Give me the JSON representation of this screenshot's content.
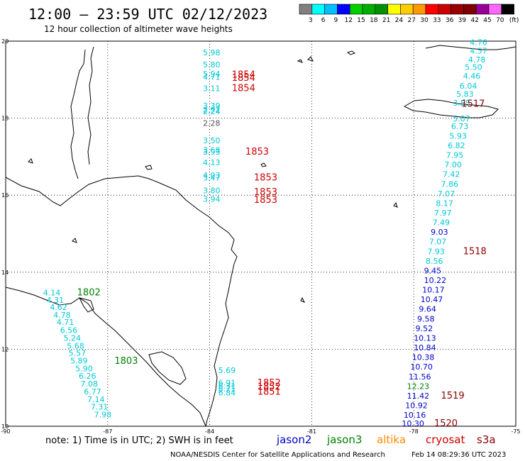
{
  "header": {
    "title": "12:00 – 23:59 UTC 02/12/2023",
    "subtitle": "12 hour collection of altimeter wave heights"
  },
  "colorbar": {
    "labels": [
      "3",
      "6",
      "9",
      "12",
      "15",
      "18",
      "21",
      "24",
      "27",
      "30",
      "33",
      "36",
      "39",
      "42",
      "45",
      "70",
      "(ft)"
    ],
    "colors": [
      "#808080",
      "#00ffff",
      "#00c0ff",
      "#0000ff",
      "#00d000",
      "#00b000",
      "#009000",
      "#ffff00",
      "#ffcc00",
      "#ff9900",
      "#ff0000",
      "#cc0000",
      "#990000",
      "#800000",
      "#990099",
      "#ff66ff",
      "#000000"
    ]
  },
  "map": {
    "lon_range": [
      -90,
      -75
    ],
    "lat_range": [
      10,
      20
    ],
    "lon_ticks": [
      "-90",
      "-87",
      "-84",
      "-81",
      "-78",
      "-75"
    ],
    "lat_ticks": [
      "20",
      "18",
      "16",
      "14",
      "12",
      "10"
    ],
    "grid": "dotted"
  },
  "satellite_colors": {
    "jason2": "#0000cc",
    "jason3": "#008000",
    "altika": "#ff8c00",
    "cryosat": "#cc0000",
    "s3a": "#8b0000",
    "cyan": "#00c8d8"
  },
  "wave_labels": [
    {
      "text": "5.98",
      "lon": -84.2,
      "lat": 19.63,
      "color": "cyan"
    },
    {
      "text": "5.80",
      "lon": -84.2,
      "lat": 19.32,
      "color": "cyan"
    },
    {
      "text": "5.94",
      "lon": -84.2,
      "lat": 19.08,
      "color": "cyan"
    },
    {
      "text": "4.71",
      "lon": -84.2,
      "lat": 19.0,
      "color": "cyan"
    },
    {
      "text": "3.11",
      "lon": -84.2,
      "lat": 18.7,
      "color": "cyan"
    },
    {
      "text": "3.39",
      "lon": -84.2,
      "lat": 18.25,
      "color": "cyan"
    },
    {
      "text": "2.92",
      "lon": -84.2,
      "lat": 18.15,
      "color": "cyan"
    },
    {
      "text": "2.24",
      "lon": -84.2,
      "lat": 18.1,
      "color": "cyan"
    },
    {
      "text": "2.28",
      "lon": -84.2,
      "lat": 17.8,
      "color": "gray"
    },
    {
      "text": "3.50",
      "lon": -84.2,
      "lat": 17.35,
      "color": "cyan"
    },
    {
      "text": "3.68",
      "lon": -84.2,
      "lat": 17.1,
      "color": "cyan"
    },
    {
      "text": "3.93",
      "lon": -84.2,
      "lat": 17.05,
      "color": "cyan"
    },
    {
      "text": "4.13",
      "lon": -84.2,
      "lat": 16.78,
      "color": "cyan"
    },
    {
      "text": "4.03",
      "lon": -84.2,
      "lat": 16.45,
      "color": "cyan"
    },
    {
      "text": "3.47",
      "lon": -84.2,
      "lat": 16.38,
      "color": "cyan"
    },
    {
      "text": "3.80",
      "lon": -84.2,
      "lat": 16.05,
      "color": "cyan"
    },
    {
      "text": "3.94",
      "lon": -84.2,
      "lat": 15.83,
      "color": "cyan"
    },
    {
      "text": "5.69",
      "lon": -83.75,
      "lat": 11.38,
      "color": "cyan"
    },
    {
      "text": "6.91",
      "lon": -83.75,
      "lat": 11.06,
      "color": "cyan"
    },
    {
      "text": "6.31",
      "lon": -83.75,
      "lat": 10.98,
      "color": "cyan"
    },
    {
      "text": "6.71",
      "lon": -83.75,
      "lat": 10.9,
      "color": "cyan"
    },
    {
      "text": "6.84",
      "lon": -83.75,
      "lat": 10.8,
      "color": "cyan"
    },
    {
      "text": "4.14",
      "lon": -88.9,
      "lat": 13.4,
      "color": "cyan"
    },
    {
      "text": "4.31",
      "lon": -88.8,
      "lat": 13.2,
      "color": "cyan"
    },
    {
      "text": "4.62",
      "lon": -88.7,
      "lat": 13.02,
      "color": "cyan"
    },
    {
      "text": "4.78",
      "lon": -88.6,
      "lat": 12.82,
      "color": "cyan"
    },
    {
      "text": "4.71",
      "lon": -88.5,
      "lat": 12.63,
      "color": "cyan"
    },
    {
      "text": "6.56",
      "lon": -88.4,
      "lat": 12.42,
      "color": "cyan"
    },
    {
      "text": "5.24",
      "lon": -88.3,
      "lat": 12.22,
      "color": "cyan"
    },
    {
      "text": "5.68",
      "lon": -88.2,
      "lat": 12.02,
      "color": "cyan"
    },
    {
      "text": "5.57",
      "lon": -88.15,
      "lat": 11.83,
      "color": "cyan"
    },
    {
      "text": "5.89",
      "lon": -88.1,
      "lat": 11.63,
      "color": "cyan"
    },
    {
      "text": "5.90",
      "lon": -87.95,
      "lat": 11.43,
      "color": "cyan"
    },
    {
      "text": "6.26",
      "lon": -87.85,
      "lat": 11.23,
      "color": "cyan"
    },
    {
      "text": "7.08",
      "lon": -87.8,
      "lat": 11.03,
      "color": "cyan"
    },
    {
      "text": "6.77",
      "lon": -87.7,
      "lat": 10.83,
      "color": "cyan"
    },
    {
      "text": "7.14",
      "lon": -87.6,
      "lat": 10.63,
      "color": "cyan"
    },
    {
      "text": "7.31",
      "lon": -87.5,
      "lat": 10.43,
      "color": "cyan"
    },
    {
      "text": "7.98",
      "lon": -87.4,
      "lat": 10.23,
      "color": "cyan"
    },
    {
      "text": "4.76",
      "lon": -76.35,
      "lat": 19.9,
      "color": "cyan"
    },
    {
      "text": "4.57",
      "lon": -76.35,
      "lat": 19.68,
      "color": "cyan"
    },
    {
      "text": "4.78",
      "lon": -76.4,
      "lat": 19.45,
      "color": "cyan"
    },
    {
      "text": "5.50",
      "lon": -76.5,
      "lat": 19.25,
      "color": "cyan"
    },
    {
      "text": "4.46",
      "lon": -76.55,
      "lat": 19.02,
      "color": "cyan"
    },
    {
      "text": "6.04",
      "lon": -76.65,
      "lat": 18.77,
      "color": "cyan"
    },
    {
      "text": "5.83",
      "lon": -76.75,
      "lat": 18.55,
      "color": "cyan"
    },
    {
      "text": "3.55",
      "lon": -76.85,
      "lat": 18.32,
      "color": "cyan"
    },
    {
      "text": "5.07",
      "lon": -76.85,
      "lat": 17.92,
      "color": "cyan"
    },
    {
      "text": "6.73",
      "lon": -76.9,
      "lat": 17.72,
      "color": "cyan"
    },
    {
      "text": "5.93",
      "lon": -76.95,
      "lat": 17.47,
      "color": "cyan"
    },
    {
      "text": "6.82",
      "lon": -77.0,
      "lat": 17.22,
      "color": "cyan"
    },
    {
      "text": "7.95",
      "lon": -77.05,
      "lat": 16.97,
      "color": "cyan"
    },
    {
      "text": "7.00",
      "lon": -77.1,
      "lat": 16.72,
      "color": "cyan"
    },
    {
      "text": "7.42",
      "lon": -77.15,
      "lat": 16.47,
      "color": "cyan"
    },
    {
      "text": "7.86",
      "lon": -77.2,
      "lat": 16.22,
      "color": "cyan"
    },
    {
      "text": "7.07",
      "lon": -77.3,
      "lat": 15.97,
      "color": "cyan"
    },
    {
      "text": "8.17",
      "lon": -77.35,
      "lat": 15.72,
      "color": "cyan"
    },
    {
      "text": "7.97",
      "lon": -77.4,
      "lat": 15.47,
      "color": "cyan"
    },
    {
      "text": "7.49",
      "lon": -77.45,
      "lat": 15.22,
      "color": "cyan"
    },
    {
      "text": "9.03",
      "lon": -77.5,
      "lat": 14.97,
      "color": "jason2"
    },
    {
      "text": "7.07",
      "lon": -77.55,
      "lat": 14.72,
      "color": "cyan"
    },
    {
      "text": "7.93",
      "lon": -77.6,
      "lat": 14.47,
      "color": "cyan"
    },
    {
      "text": "8.56",
      "lon": -77.65,
      "lat": 14.22,
      "color": "cyan"
    },
    {
      "text": "9.45",
      "lon": -77.7,
      "lat": 13.97,
      "color": "jason2"
    },
    {
      "text": "10.22",
      "lon": -77.7,
      "lat": 13.72,
      "color": "jason2"
    },
    {
      "text": "10.17",
      "lon": -77.75,
      "lat": 13.47,
      "color": "jason2"
    },
    {
      "text": "10.47",
      "lon": -77.8,
      "lat": 13.22,
      "color": "jason2"
    },
    {
      "text": "9.64",
      "lon": -77.85,
      "lat": 12.97,
      "color": "jason2"
    },
    {
      "text": "9.58",
      "lon": -77.9,
      "lat": 12.72,
      "color": "jason2"
    },
    {
      "text": "9.52",
      "lon": -77.95,
      "lat": 12.47,
      "color": "jason2"
    },
    {
      "text": "10.13",
      "lon": -78.0,
      "lat": 12.22,
      "color": "jason2"
    },
    {
      "text": "10.84",
      "lon": -78.0,
      "lat": 11.97,
      "color": "jason2"
    },
    {
      "text": "10.38",
      "lon": -78.05,
      "lat": 11.72,
      "color": "jason2"
    },
    {
      "text": "10.70",
      "lon": -78.1,
      "lat": 11.47,
      "color": "jason2"
    },
    {
      "text": "11.56",
      "lon": -78.15,
      "lat": 11.22,
      "color": "jason2"
    },
    {
      "text": "12.23",
      "lon": -78.2,
      "lat": 10.97,
      "color": "jason3"
    },
    {
      "text": "11.42",
      "lon": -78.2,
      "lat": 10.72,
      "color": "jason2"
    },
    {
      "text": "10.92",
      "lon": -78.25,
      "lat": 10.47,
      "color": "jason2"
    },
    {
      "text": "10.16",
      "lon": -78.3,
      "lat": 10.22,
      "color": "jason2"
    },
    {
      "text": "10.30",
      "lon": -78.35,
      "lat": 10.0,
      "color": "jason2"
    }
  ],
  "time_labels": [
    {
      "text": "1854",
      "lon": -83.35,
      "lat": 19.05,
      "color": "cryosat"
    },
    {
      "text": "1854",
      "lon": -83.35,
      "lat": 18.97,
      "color": "cryosat"
    },
    {
      "text": "1854",
      "lon": -83.35,
      "lat": 18.7,
      "color": "cryosat"
    },
    {
      "text": "1853",
      "lon": -82.95,
      "lat": 17.05,
      "color": "cryosat"
    },
    {
      "text": "1853",
      "lon": -82.7,
      "lat": 16.38,
      "color": "cryosat"
    },
    {
      "text": "1853",
      "lon": -82.7,
      "lat": 16.0,
      "color": "cryosat"
    },
    {
      "text": "1853",
      "lon": -82.7,
      "lat": 15.8,
      "color": "cryosat"
    },
    {
      "text": "1852",
      "lon": -82.6,
      "lat": 11.05,
      "color": "cryosat"
    },
    {
      "text": "1852",
      "lon": -82.6,
      "lat": 10.95,
      "color": "cryosat"
    },
    {
      "text": "1851",
      "lon": -82.6,
      "lat": 10.82,
      "color": "cryosat"
    },
    {
      "text": "1802",
      "lon": -87.9,
      "lat": 13.4,
      "color": "jason3"
    },
    {
      "text": "1803",
      "lon": -86.8,
      "lat": 11.62,
      "color": "jason3"
    },
    {
      "text": "1517",
      "lon": -76.6,
      "lat": 18.3,
      "color": "s3a"
    },
    {
      "text": "1518",
      "lon": -76.55,
      "lat": 14.47,
      "color": "s3a"
    },
    {
      "text": "1519",
      "lon": -77.2,
      "lat": 10.72,
      "color": "s3a"
    },
    {
      "text": "1520",
      "lon": -77.4,
      "lat": 10.0,
      "color": "s3a"
    }
  ],
  "footer": {
    "note": "note: 1) Time is in UTC; 2) SWH is in feet",
    "legend": [
      {
        "label": "jason2",
        "color": "#0000cc"
      },
      {
        "label": "jason3",
        "color": "#008000"
      },
      {
        "label": "altika",
        "color": "#ff8c00"
      },
      {
        "label": "cryosat",
        "color": "#cc0000"
      },
      {
        "label": "s3a",
        "color": "#8b0000"
      }
    ],
    "credit": "NOAA/NESDIS Center for Satellite Applications and Research",
    "timestamp": "Feb 14 08:29:36 UTC 2023"
  }
}
